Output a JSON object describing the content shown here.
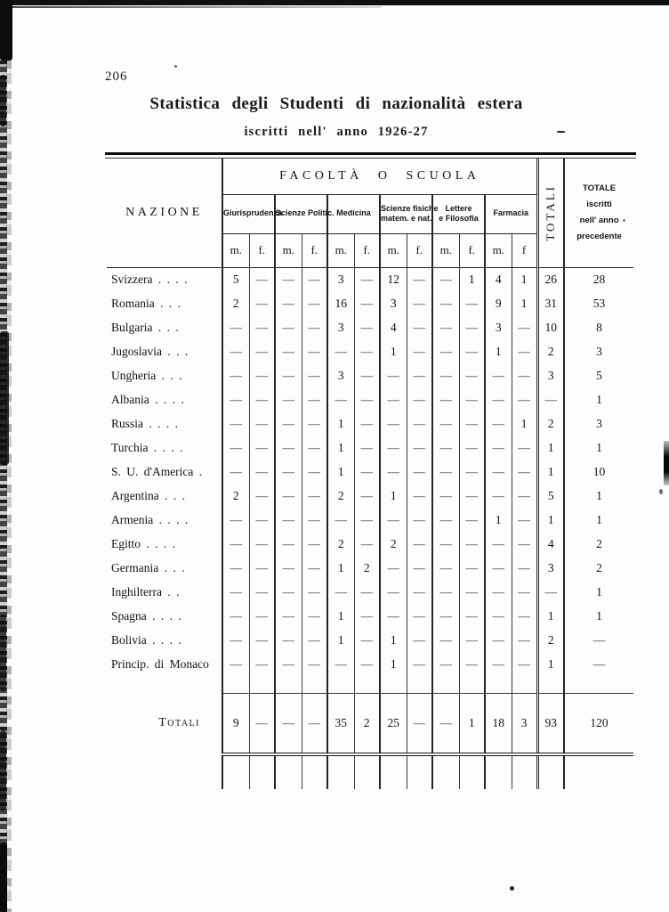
{
  "page": {
    "number": "206"
  },
  "title": "Statistica degli Studenti di nazionalità estera",
  "subtitle": "iscritti nell' anno 1926-27",
  "table": {
    "header": {
      "nazione": "NAZIONE",
      "facolta": "FACOLTÀ O SCUOLA",
      "faculties": [
        [
          "Giurisprudenza"
        ],
        [
          "Scienze Politic."
        ],
        [
          "Medicina"
        ],
        [
          "Scienze fisiche",
          "matem. e nat."
        ],
        [
          "Lettere",
          "e Filosofia"
        ],
        [
          "Farmacia"
        ]
      ],
      "mf": [
        "m.",
        "f.",
        "m.",
        "f.",
        "m.",
        "f.",
        "m.",
        "f.",
        "m.",
        "f.",
        "m.",
        "f"
      ],
      "totali": "TOTALI",
      "prev": [
        "TOTALE",
        "iscritti",
        "nell' anno",
        "precedente"
      ]
    },
    "rows": [
      {
        "nation": "Svizzera .  .  .  .",
        "values": [
          "5",
          "—",
          "—",
          "—",
          "3",
          "—",
          "12",
          "—",
          "—",
          "1",
          "4",
          "1"
        ],
        "total": "26",
        "prev": "28"
      },
      {
        "nation": "Romania  .  .  .",
        "values": [
          "2",
          "—",
          "—",
          "—",
          "16",
          "—",
          "3",
          "—",
          "—",
          "—",
          "9",
          "1"
        ],
        "total": "31",
        "prev": "53"
      },
      {
        "nation": "Bulgaria  .  .  .",
        "values": [
          "—",
          "—",
          "—",
          "—",
          "3",
          "—",
          "4",
          "—",
          "—",
          "—",
          "3",
          "—"
        ],
        "total": "10",
        "prev": "8"
      },
      {
        "nation": "Jugoslavia .  .  .",
        "values": [
          "—",
          "—",
          "—",
          "—",
          "—",
          "—",
          "1",
          "—",
          "—",
          "—",
          "1",
          "—"
        ],
        "total": "2",
        "prev": "3"
      },
      {
        "nation": "Ungheria  .  .  .",
        "values": [
          "—",
          "—",
          "—",
          "—",
          "3",
          "—",
          "—",
          "—",
          "—",
          "—",
          "—",
          "—"
        ],
        "total": "3",
        "prev": "5"
      },
      {
        "nation": "Albania .  .  .  .",
        "values": [
          "—",
          "—",
          "—",
          "—",
          "—",
          "—",
          "—",
          "—",
          "—",
          "—",
          "—",
          "—"
        ],
        "total": "—",
        "prev": "1"
      },
      {
        "nation": "Russia  .  .  .  .",
        "values": [
          "—",
          "—",
          "—",
          "—",
          "1",
          "—",
          "—",
          "—",
          "—",
          "—",
          "—",
          "1"
        ],
        "total": "2",
        "prev": "3"
      },
      {
        "nation": "Turchia .  .  .  .",
        "values": [
          "—",
          "—",
          "—",
          "—",
          "1",
          "—",
          "—",
          "—",
          "—",
          "—",
          "—",
          "—"
        ],
        "total": "1",
        "prev": "1"
      },
      {
        "nation": "S. U. d'America .",
        "values": [
          "—",
          "—",
          "—",
          "—",
          "1",
          "—",
          "—",
          "—",
          "—",
          "—",
          "—",
          "—"
        ],
        "total": "1",
        "prev": "10"
      },
      {
        "nation": "Argentina  .  .  .",
        "values": [
          "2",
          "—",
          "—",
          "—",
          "2",
          "—",
          "1",
          "—",
          "—",
          "—",
          "—",
          "—"
        ],
        "total": "5",
        "prev": "1"
      },
      {
        "nation": "Armenia .  .  .  .",
        "values": [
          "—",
          "—",
          "—",
          "—",
          "—",
          "—",
          "—",
          "—",
          "—",
          "—",
          "1",
          "—"
        ],
        "total": "1",
        "prev": "1"
      },
      {
        "nation": "Egitto  .  .  .  .",
        "values": [
          "—",
          "—",
          "—",
          "—",
          "2",
          "—",
          "2",
          "—",
          "—",
          "—",
          "—",
          "—"
        ],
        "total": "4",
        "prev": "2"
      },
      {
        "nation": "Germania  .  .  .",
        "values": [
          "—",
          "—",
          "—",
          "—",
          "1",
          "2",
          "—",
          "—",
          "—",
          "—",
          "—",
          "—"
        ],
        "total": "3",
        "prev": "2"
      },
      {
        "nation": "Inghilterra   .  .",
        "values": [
          "—",
          "—",
          "—",
          "—",
          "—",
          "—",
          "—",
          "—",
          "—",
          "—",
          "—",
          "—"
        ],
        "total": "—",
        "prev": "1"
      },
      {
        "nation": "Spagna .  .  .  .",
        "values": [
          "—",
          "—",
          "—",
          "—",
          "1",
          "—",
          "—",
          "—",
          "—",
          "—",
          "—",
          "—"
        ],
        "total": "1",
        "prev": "1"
      },
      {
        "nation": "Bolivia  .  .  .  .",
        "values": [
          "—",
          "—",
          "—",
          "—",
          "1",
          "—",
          "1",
          "—",
          "—",
          "—",
          "—",
          "—"
        ],
        "total": "2",
        "prev": "—"
      },
      {
        "nation": "Princip. di Monaco",
        "values": [
          "—",
          "—",
          "—",
          "—",
          "—",
          "—",
          "1",
          "—",
          "—",
          "—",
          "—",
          "—"
        ],
        "total": "1",
        "prev": "—"
      }
    ],
    "totals": {
      "label": "Totali",
      "values": [
        "9",
        "—",
        "—",
        "—",
        "35",
        "2",
        "25",
        "—",
        "—",
        "1",
        "18",
        "3"
      ],
      "total": "93",
      "prev": "120"
    }
  }
}
